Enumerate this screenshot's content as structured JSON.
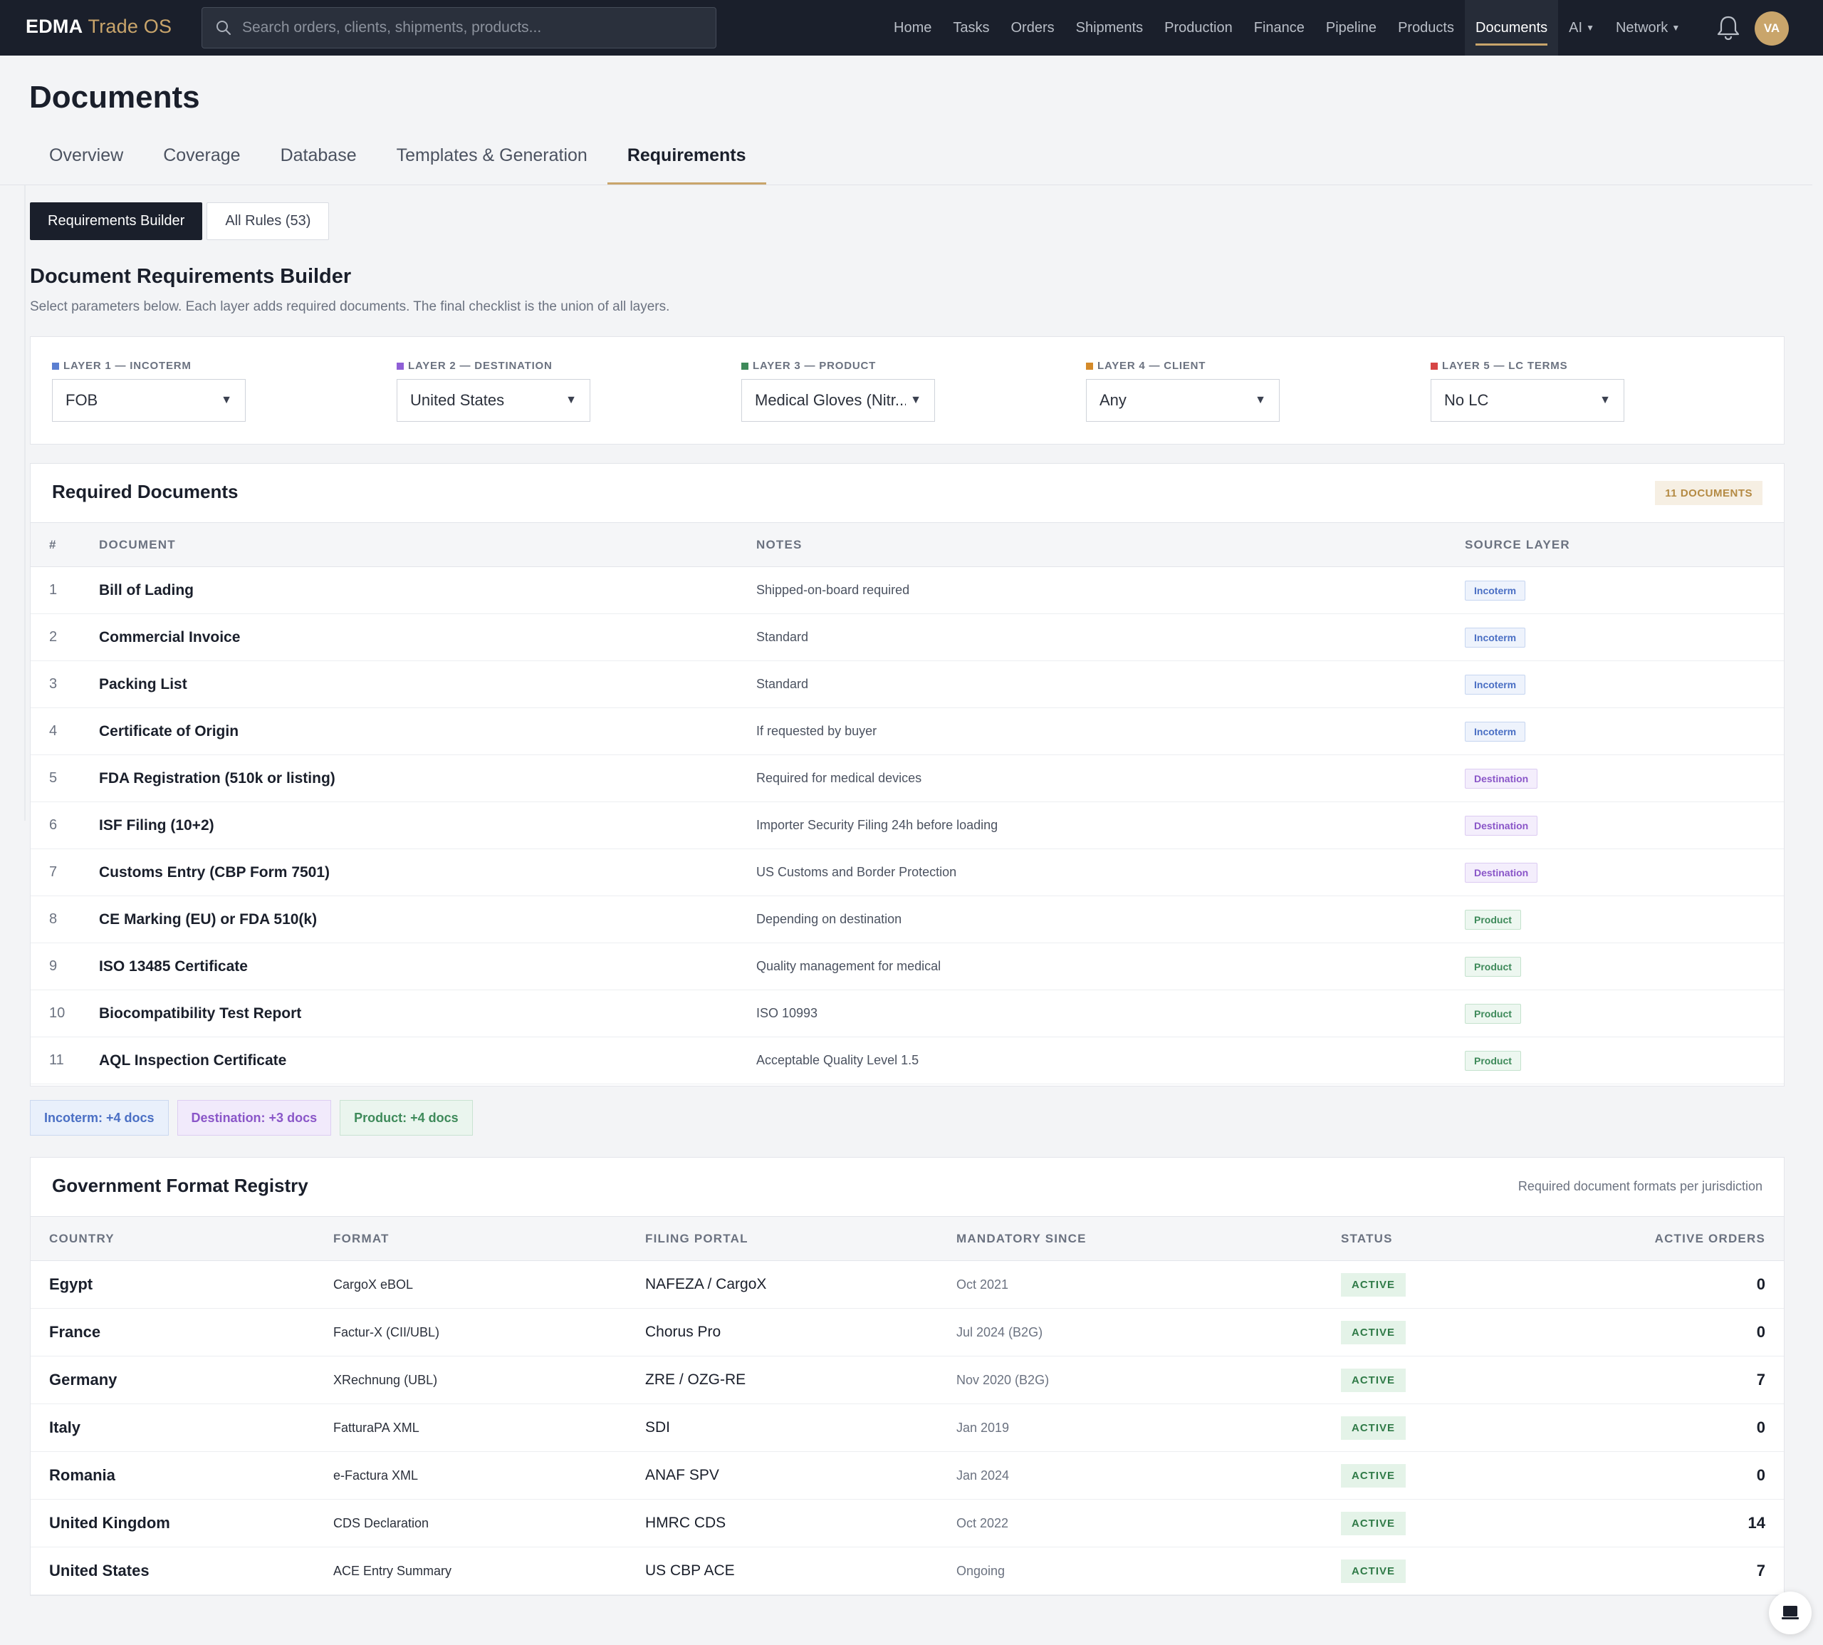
{
  "brand": {
    "bold": "EDMA",
    "rest": "Trade OS"
  },
  "search": {
    "placeholder": "Search orders, clients, shipments, products..."
  },
  "nav": {
    "items": [
      "Home",
      "Tasks",
      "Orders",
      "Shipments",
      "Production",
      "Finance",
      "Pipeline",
      "Products",
      "Documents"
    ],
    "ai": "AI",
    "network": "Network",
    "active": "Documents"
  },
  "user": {
    "initials": "VA"
  },
  "page": {
    "title": "Documents"
  },
  "tabs": [
    "Overview",
    "Coverage",
    "Database",
    "Templates & Generation",
    "Requirements"
  ],
  "segment": {
    "builder": "Requirements Builder",
    "rules": "All Rules (53)"
  },
  "builder": {
    "title": "Document Requirements Builder",
    "subtitle": "Select parameters below. Each layer adds required documents. The final checklist is the union of all layers."
  },
  "layers": [
    {
      "label": "LAYER 1 — INCOTERM",
      "value": "FOB",
      "color": "#5b7fd1"
    },
    {
      "label": "LAYER 2 — DESTINATION",
      "value": "United States",
      "color": "#8f5fd6"
    },
    {
      "label": "LAYER 3 — PRODUCT",
      "value": "Medical Gloves (Nitr...",
      "color": "#3e8a5a"
    },
    {
      "label": "LAYER 4 — CLIENT",
      "value": "Any",
      "color": "#d48a2a"
    },
    {
      "label": "LAYER 5 — LC TERMS",
      "value": "No LC",
      "color": "#d64545"
    }
  ],
  "required": {
    "title": "Required Documents",
    "count": "11 DOCUMENTS",
    "headers": [
      "#",
      "DOCUMENT",
      "NOTES",
      "SOURCE LAYER"
    ],
    "rows": [
      {
        "n": "1",
        "doc": "Bill of Lading",
        "notes": "Shipped-on-board required",
        "layer": "Incoterm"
      },
      {
        "n": "2",
        "doc": "Commercial Invoice",
        "notes": "Standard",
        "layer": "Incoterm"
      },
      {
        "n": "3",
        "doc": "Packing List",
        "notes": "Standard",
        "layer": "Incoterm"
      },
      {
        "n": "4",
        "doc": "Certificate of Origin",
        "notes": "If requested by buyer",
        "layer": "Incoterm"
      },
      {
        "n": "5",
        "doc": "FDA Registration (510k or listing)",
        "notes": "Required for medical devices",
        "layer": "Destination"
      },
      {
        "n": "6",
        "doc": "ISF Filing (10+2)",
        "notes": "Importer Security Filing 24h before loading",
        "layer": "Destination"
      },
      {
        "n": "7",
        "doc": "Customs Entry (CBP Form 7501)",
        "notes": "US Customs and Border Protection",
        "layer": "Destination"
      },
      {
        "n": "8",
        "doc": "CE Marking (EU) or FDA 510(k)",
        "notes": "Depending on destination",
        "layer": "Product"
      },
      {
        "n": "9",
        "doc": "ISO 13485 Certificate",
        "notes": "Quality management for medical",
        "layer": "Product"
      },
      {
        "n": "10",
        "doc": "Biocompatibility Test Report",
        "notes": "ISO 10993",
        "layer": "Product"
      },
      {
        "n": "11",
        "doc": "AQL Inspection Certificate",
        "notes": "Acceptable Quality Level 1.5",
        "layer": "Product"
      }
    ]
  },
  "summary": [
    {
      "text": "Incoterm: +4 docs",
      "kind": "incoterm"
    },
    {
      "text": "Destination: +3 docs",
      "kind": "destination"
    },
    {
      "text": "Product: +4 docs",
      "kind": "product"
    }
  ],
  "registry": {
    "title": "Government Format Registry",
    "subtitle": "Required document formats per jurisdiction",
    "headers": [
      "COUNTRY",
      "FORMAT",
      "FILING PORTAL",
      "MANDATORY SINCE",
      "STATUS",
      "ACTIVE ORDERS"
    ],
    "rows": [
      {
        "country": "Egypt",
        "format": "CargoX eBOL",
        "portal": "NAFEZA / CargoX",
        "since": "Oct 2021",
        "status": "ACTIVE",
        "orders": "0"
      },
      {
        "country": "France",
        "format": "Factur-X (CII/UBL)",
        "portal": "Chorus Pro",
        "since": "Jul 2024 (B2G)",
        "status": "ACTIVE",
        "orders": "0"
      },
      {
        "country": "Germany",
        "format": "XRechnung (UBL)",
        "portal": "ZRE / OZG-RE",
        "since": "Nov 2020 (B2G)",
        "status": "ACTIVE",
        "orders": "7"
      },
      {
        "country": "Italy",
        "format": "FatturaPA XML",
        "portal": "SDI",
        "since": "Jan 2019",
        "status": "ACTIVE",
        "orders": "0"
      },
      {
        "country": "Romania",
        "format": "e-Factura XML",
        "portal": "ANAF SPV",
        "since": "Jan 2024",
        "status": "ACTIVE",
        "orders": "0"
      },
      {
        "country": "United Kingdom",
        "format": "CDS Declaration",
        "portal": "HMRC CDS",
        "since": "Oct 2022",
        "status": "ACTIVE",
        "orders": "14"
      },
      {
        "country": "United States",
        "format": "ACE Entry Summary",
        "portal": "US CBP ACE",
        "since": "Ongoing",
        "status": "ACTIVE",
        "orders": "7"
      }
    ]
  },
  "icons": {
    "search": "search-icon",
    "bell": "bell-icon",
    "chat": "chat-icon",
    "dropdown": "chevron-down-icon"
  }
}
